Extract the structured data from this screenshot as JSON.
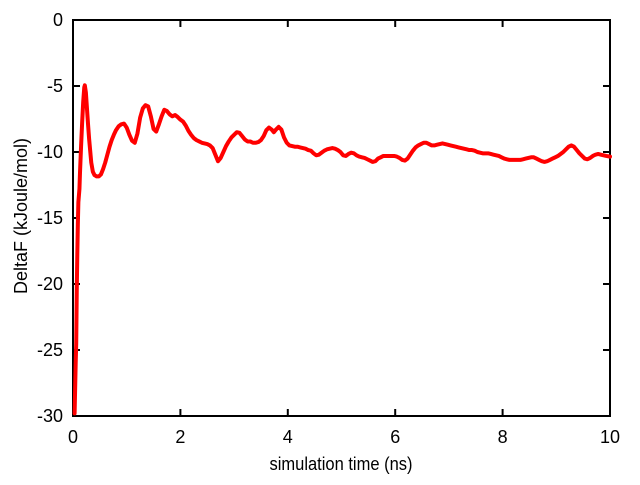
{
  "figure": {
    "background_color": "#ffffff",
    "axis_color": "#000000",
    "text_color": "#000000"
  },
  "chart_data": {
    "type": "line",
    "title": "",
    "xlabel": "simulation time (ns)",
    "ylabel": "DeltaF (kJoule/mol)",
    "xlim": [
      0,
      10
    ],
    "ylim": [
      -30,
      0
    ],
    "xticks": [
      0,
      2,
      4,
      6,
      8,
      10
    ],
    "yticks": [
      0,
      -5,
      -10,
      -15,
      -20,
      -25,
      -30
    ],
    "grid": false,
    "legend": "none",
    "ticks_mirrored": true,
    "series": [
      {
        "name": "DeltaF",
        "color": "#ff0000",
        "line_width": 4,
        "x": [
          0.03,
          0.05,
          0.06,
          0.07,
          0.08,
          0.09,
          0.1,
          0.12,
          0.13,
          0.15,
          0.17,
          0.19,
          0.21,
          0.22,
          0.24,
          0.26,
          0.28,
          0.3,
          0.32,
          0.34,
          0.37,
          0.4,
          0.44,
          0.48,
          0.52,
          0.56,
          0.6,
          0.64,
          0.68,
          0.72,
          0.76,
          0.8,
          0.85,
          0.9,
          0.95,
          1.0,
          1.05,
          1.1,
          1.15,
          1.2,
          1.25,
          1.3,
          1.35,
          1.4,
          1.45,
          1.5,
          1.55,
          1.6,
          1.65,
          1.7,
          1.75,
          1.8,
          1.85,
          1.9,
          1.95,
          2.0,
          2.05,
          2.1,
          2.15,
          2.2,
          2.25,
          2.3,
          2.35,
          2.4,
          2.45,
          2.5,
          2.55,
          2.6,
          2.65,
          2.7,
          2.75,
          2.8,
          2.85,
          2.9,
          2.95,
          3.0,
          3.05,
          3.1,
          3.15,
          3.2,
          3.25,
          3.3,
          3.35,
          3.4,
          3.45,
          3.5,
          3.55,
          3.6,
          3.65,
          3.7,
          3.74,
          3.78,
          3.83,
          3.88,
          3.93,
          3.98,
          4.03,
          4.08,
          4.13,
          4.18,
          4.23,
          4.28,
          4.33,
          4.38,
          4.43,
          4.48,
          4.53,
          4.58,
          4.63,
          4.68,
          4.73,
          4.78,
          4.83,
          4.88,
          4.93,
          4.98,
          5.03,
          5.08,
          5.13,
          5.18,
          5.23,
          5.28,
          5.33,
          5.38,
          5.43,
          5.48,
          5.53,
          5.58,
          5.63,
          5.68,
          5.73,
          5.78,
          5.83,
          5.88,
          5.93,
          5.98,
          6.03,
          6.08,
          6.13,
          6.18,
          6.23,
          6.28,
          6.33,
          6.38,
          6.43,
          6.48,
          6.53,
          6.58,
          6.63,
          6.68,
          6.73,
          6.78,
          6.83,
          6.88,
          6.93,
          6.98,
          7.03,
          7.08,
          7.13,
          7.18,
          7.23,
          7.28,
          7.33,
          7.38,
          7.43,
          7.48,
          7.53,
          7.58,
          7.63,
          7.68,
          7.73,
          7.78,
          7.83,
          7.88,
          7.93,
          7.98,
          8.03,
          8.08,
          8.13,
          8.18,
          8.23,
          8.28,
          8.33,
          8.38,
          8.43,
          8.48,
          8.53,
          8.58,
          8.63,
          8.68,
          8.73,
          8.78,
          8.83,
          8.88,
          8.93,
          8.98,
          9.03,
          9.08,
          9.13,
          9.18,
          9.23,
          9.28,
          9.33,
          9.38,
          9.43,
          9.48,
          9.53,
          9.58,
          9.63,
          9.68,
          9.73,
          9.78,
          9.83,
          9.88,
          9.93,
          10.0
        ],
        "y": [
          -29.8,
          -26.0,
          -24.5,
          -20.5,
          -17.8,
          -15.5,
          -13.8,
          -12.8,
          -11.6,
          -9.6,
          -7.8,
          -6.2,
          -5.1,
          -4.95,
          -5.5,
          -6.7,
          -7.9,
          -9.0,
          -9.9,
          -10.8,
          -11.5,
          -11.75,
          -11.85,
          -11.85,
          -11.7,
          -11.3,
          -10.8,
          -10.2,
          -9.6,
          -9.1,
          -8.7,
          -8.35,
          -8.05,
          -7.9,
          -7.85,
          -8.15,
          -8.7,
          -9.15,
          -9.3,
          -8.6,
          -7.4,
          -6.7,
          -6.45,
          -6.55,
          -7.3,
          -8.25,
          -8.45,
          -7.9,
          -7.3,
          -6.8,
          -6.9,
          -7.15,
          -7.3,
          -7.2,
          -7.35,
          -7.55,
          -7.7,
          -8.0,
          -8.4,
          -8.7,
          -8.95,
          -9.1,
          -9.2,
          -9.3,
          -9.35,
          -9.4,
          -9.5,
          -9.7,
          -10.2,
          -10.7,
          -10.45,
          -10.0,
          -9.55,
          -9.2,
          -8.9,
          -8.7,
          -8.5,
          -8.55,
          -8.8,
          -9.05,
          -9.2,
          -9.2,
          -9.3,
          -9.3,
          -9.25,
          -9.1,
          -8.8,
          -8.35,
          -8.15,
          -8.3,
          -8.5,
          -8.3,
          -8.1,
          -8.3,
          -8.9,
          -9.3,
          -9.5,
          -9.55,
          -9.6,
          -9.6,
          -9.65,
          -9.7,
          -9.75,
          -9.85,
          -9.9,
          -10.1,
          -10.25,
          -10.2,
          -10.05,
          -9.9,
          -9.8,
          -9.75,
          -9.7,
          -9.75,
          -9.85,
          -10.0,
          -10.25,
          -10.3,
          -10.15,
          -10.05,
          -10.1,
          -10.25,
          -10.35,
          -10.4,
          -10.45,
          -10.55,
          -10.65,
          -10.75,
          -10.7,
          -10.5,
          -10.4,
          -10.3,
          -10.3,
          -10.3,
          -10.3,
          -10.3,
          -10.35,
          -10.45,
          -10.6,
          -10.65,
          -10.5,
          -10.2,
          -9.9,
          -9.65,
          -9.5,
          -9.4,
          -9.3,
          -9.3,
          -9.4,
          -9.5,
          -9.5,
          -9.45,
          -9.4,
          -9.35,
          -9.4,
          -9.45,
          -9.5,
          -9.55,
          -9.6,
          -9.65,
          -9.7,
          -9.75,
          -9.8,
          -9.85,
          -9.85,
          -9.9,
          -10.0,
          -10.05,
          -10.1,
          -10.1,
          -10.1,
          -10.15,
          -10.2,
          -10.25,
          -10.3,
          -10.4,
          -10.5,
          -10.55,
          -10.6,
          -10.6,
          -10.6,
          -10.6,
          -10.6,
          -10.55,
          -10.5,
          -10.45,
          -10.4,
          -10.4,
          -10.5,
          -10.6,
          -10.7,
          -10.75,
          -10.7,
          -10.6,
          -10.5,
          -10.4,
          -10.3,
          -10.15,
          -10.0,
          -9.8,
          -9.6,
          -9.5,
          -9.6,
          -9.85,
          -10.1,
          -10.3,
          -10.5,
          -10.55,
          -10.45,
          -10.3,
          -10.2,
          -10.15,
          -10.2,
          -10.25,
          -10.3,
          -10.35
        ]
      }
    ]
  }
}
